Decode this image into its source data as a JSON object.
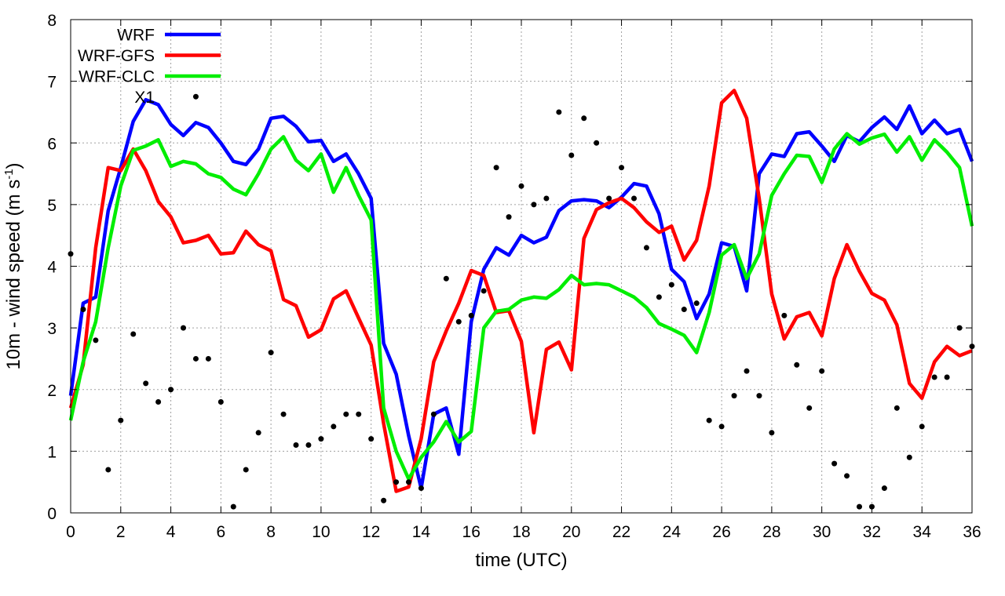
{
  "chart_data": {
    "type": "line",
    "title": "",
    "xlabel": "time (UTC)",
    "ylabel_main": "10m - wind speed  (m s",
    "ylabel_sup": "-1",
    "ylabel_close": ")",
    "xlim": [
      0,
      36
    ],
    "ylim": [
      0,
      8
    ],
    "xticks": [
      0,
      2,
      4,
      6,
      8,
      10,
      12,
      14,
      16,
      18,
      20,
      22,
      24,
      26,
      28,
      30,
      32,
      34,
      36
    ],
    "yticks": [
      0,
      1,
      2,
      3,
      4,
      5,
      6,
      7,
      8
    ],
    "grid": true,
    "legend_position": "top-left",
    "x": [
      0,
      0.5,
      1,
      1.5,
      2,
      2.5,
      3,
      3.5,
      4,
      4.5,
      5,
      5.5,
      6,
      6.5,
      7,
      7.5,
      8,
      8.5,
      9,
      9.5,
      10,
      10.5,
      11,
      11.5,
      12,
      12.5,
      13,
      13.5,
      14,
      14.5,
      15,
      15.5,
      16,
      16.5,
      17,
      17.5,
      18,
      18.5,
      19,
      19.5,
      20,
      20.5,
      21,
      21.5,
      22,
      22.5,
      23,
      23.5,
      24,
      24.5,
      25,
      25.5,
      26,
      26.5,
      27,
      27.5,
      28,
      28.5,
      29,
      29.5,
      30,
      30.5,
      31,
      31.5,
      32,
      32.5,
      33,
      33.5,
      34,
      34.5,
      35,
      35.5,
      36
    ],
    "series": [
      {
        "name": "WRF",
        "color": "#0000ff",
        "kind": "line",
        "values": [
          1.9,
          3.4,
          3.5,
          4.9,
          5.6,
          6.35,
          6.7,
          6.62,
          6.3,
          6.12,
          6.33,
          6.25,
          6.0,
          5.7,
          5.65,
          5.9,
          6.4,
          6.43,
          6.27,
          6.02,
          6.04,
          5.7,
          5.82,
          5.5,
          5.1,
          2.75,
          2.25,
          1.25,
          0.4,
          1.6,
          1.7,
          0.95,
          3.1,
          3.95,
          4.3,
          4.18,
          4.5,
          4.38,
          4.47,
          4.9,
          5.06,
          5.08,
          5.06,
          4.95,
          5.12,
          5.34,
          5.3,
          4.85,
          3.95,
          3.75,
          3.15,
          3.55,
          4.38,
          4.32,
          3.6,
          5.5,
          5.82,
          5.78,
          6.15,
          6.18,
          5.95,
          5.7,
          6.12,
          6.02,
          6.25,
          6.42,
          6.22,
          6.6,
          6.15,
          6.37,
          6.15,
          6.22,
          5.7
        ]
      },
      {
        "name": "WRF-GFS",
        "color": "#ff0000",
        "kind": "line",
        "values": [
          1.7,
          2.4,
          4.3,
          5.6,
          5.55,
          5.9,
          5.55,
          5.05,
          4.8,
          4.38,
          4.42,
          4.5,
          4.2,
          4.22,
          4.57,
          4.35,
          4.25,
          3.46,
          3.36,
          2.85,
          2.97,
          3.47,
          3.6,
          3.16,
          2.72,
          1.45,
          0.35,
          0.42,
          1.2,
          2.45,
          2.95,
          3.4,
          3.93,
          3.85,
          3.25,
          3.28,
          2.78,
          1.3,
          2.65,
          2.77,
          2.32,
          4.45,
          4.92,
          5.03,
          5.1,
          4.95,
          4.72,
          4.55,
          4.65,
          4.1,
          4.42,
          5.3,
          6.65,
          6.85,
          6.4,
          5.1,
          3.55,
          2.82,
          3.18,
          3.25,
          2.87,
          3.8,
          4.35,
          3.92,
          3.56,
          3.45,
          3.05,
          2.1,
          1.86,
          2.45,
          2.7,
          2.55,
          2.63
        ]
      },
      {
        "name": "WRF-CLC",
        "color": "#00ee00",
        "kind": "line",
        "values": [
          1.5,
          2.45,
          3.1,
          4.3,
          5.3,
          5.88,
          5.95,
          6.05,
          5.62,
          5.7,
          5.66,
          5.5,
          5.44,
          5.25,
          5.16,
          5.5,
          5.9,
          6.1,
          5.72,
          5.55,
          5.82,
          5.2,
          5.6,
          5.15,
          4.75,
          1.7,
          1.0,
          0.55,
          0.9,
          1.15,
          1.48,
          1.15,
          1.32,
          3.0,
          3.27,
          3.3,
          3.45,
          3.5,
          3.48,
          3.62,
          3.85,
          3.7,
          3.72,
          3.7,
          3.6,
          3.5,
          3.33,
          3.07,
          2.98,
          2.88,
          2.6,
          3.25,
          4.18,
          4.35,
          3.8,
          4.2,
          5.15,
          5.5,
          5.8,
          5.78,
          5.36,
          5.9,
          6.15,
          5.98,
          6.08,
          6.14,
          5.85,
          6.1,
          5.72,
          6.05,
          5.85,
          5.6,
          4.65
        ]
      },
      {
        "name": "X1",
        "color": "#000000",
        "kind": "points",
        "values": [
          4.2,
          3.3,
          2.8,
          0.7,
          1.5,
          2.9,
          2.1,
          1.8,
          2.0,
          3.0,
          2.5,
          2.5,
          1.8,
          0.1,
          0.7,
          1.3,
          2.6,
          1.6,
          1.1,
          1.1,
          1.2,
          1.4,
          1.6,
          1.6,
          1.2,
          0.2,
          0.5,
          0.5,
          0.4,
          1.6,
          3.8,
          3.1,
          3.2,
          3.6,
          5.6,
          4.8,
          5.3,
          5.0,
          5.1,
          6.5,
          5.8,
          6.4,
          6.0,
          5.1,
          5.6,
          5.1,
          4.3,
          3.5,
          3.7,
          3.3,
          3.4,
          1.5,
          1.4,
          1.9,
          2.3,
          1.9,
          1.3,
          3.2,
          2.4,
          1.7,
          2.3,
          0.8,
          0.6,
          0.1,
          0.1,
          0.4,
          1.7,
          0.9,
          1.4,
          2.2,
          2.2,
          3.0,
          2.7
        ]
      }
    ],
    "extra_points": [
      {
        "series": "X1",
        "x": 5,
        "y": 6.75
      }
    ]
  }
}
